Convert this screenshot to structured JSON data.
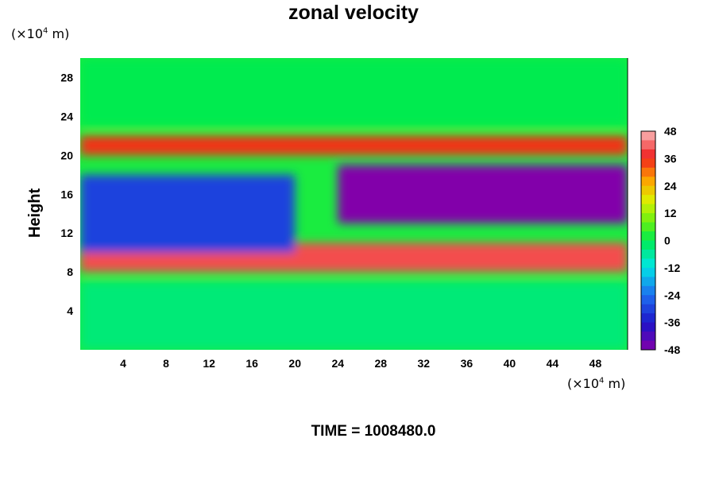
{
  "chart_data": {
    "type": "heatmap",
    "title": "zonal velocity",
    "ylabel": "Height",
    "x_unit": {
      "prefix": "(×10",
      "exp": "4",
      "suffix": " m)"
    },
    "y_unit": {
      "prefix": "(×10",
      "exp": "4",
      "suffix": " m)"
    },
    "xlim": [
      0,
      51
    ],
    "ylim": [
      0,
      30
    ],
    "x_ticks": [
      4,
      8,
      12,
      16,
      20,
      24,
      28,
      32,
      36,
      40,
      44,
      48
    ],
    "y_ticks": [
      4,
      8,
      12,
      16,
      20,
      24,
      28
    ],
    "colorbar": {
      "min": -48,
      "max": 48,
      "ticks": [
        48,
        36,
        24,
        12,
        0,
        -12,
        -24,
        -36,
        -48
      ],
      "colormap": "rainbow (purple-blue-cyan-green-yellow-red-pink)"
    },
    "features": [
      {
        "x": [
          24,
          51
        ],
        "y": [
          13,
          19
        ],
        "level": -50
      },
      {
        "x": [
          0,
          51
        ],
        "y": [
          20,
          22
        ],
        "level": 35
      },
      {
        "x": [
          0,
          51
        ],
        "y": [
          8,
          11
        ],
        "level": 40
      },
      {
        "x": [
          0,
          20
        ],
        "y": [
          10,
          18
        ],
        "level": -30
      },
      {
        "x": [
          0,
          51
        ],
        "y": [
          0,
          7
        ],
        "level": -3
      },
      {
        "x": [
          0,
          51
        ],
        "y": [
          23,
          30
        ],
        "level": 0
      }
    ],
    "time_label": "TIME = 1008480.0"
  }
}
